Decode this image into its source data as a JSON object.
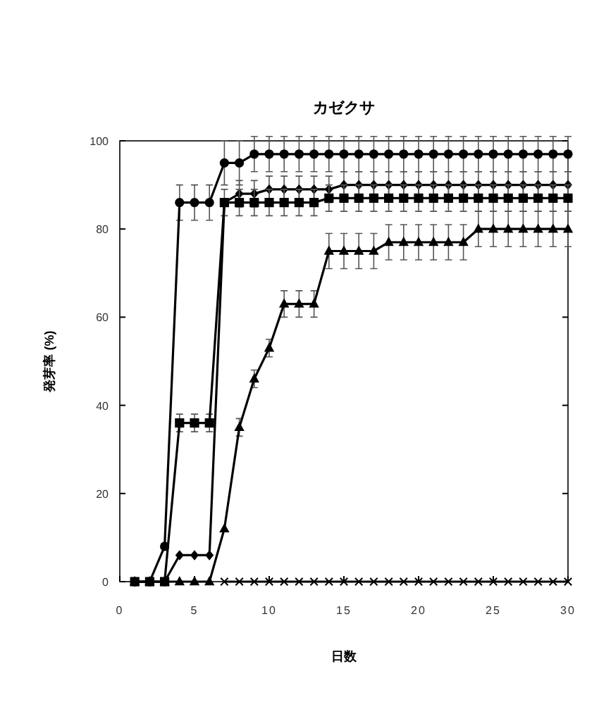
{
  "chart_data": {
    "type": "line",
    "title": "カゼクサ",
    "xlabel": "日数",
    "ylabel": "発芽率 (%)",
    "xlim": [
      0,
      30
    ],
    "xticks": [
      0,
      5,
      10,
      15,
      20,
      25,
      30
    ],
    "ylim": [
      0,
      100
    ],
    "yticks": [
      0,
      20,
      40,
      60,
      80,
      100
    ],
    "grid": false,
    "x": [
      1,
      2,
      3,
      4,
      5,
      6,
      7,
      8,
      9,
      10,
      11,
      12,
      13,
      14,
      15,
      16,
      17,
      18,
      19,
      20,
      21,
      22,
      23,
      24,
      25,
      26,
      27,
      28,
      29,
      30
    ],
    "series": [
      {
        "color": "#000000",
        "marker": "circle",
        "values": [
          0,
          0,
          8,
          86,
          86,
          86,
          95,
          95,
          97,
          97,
          97,
          97,
          97,
          97,
          97,
          97,
          97,
          97,
          97,
          97,
          97,
          97,
          97,
          97,
          97,
          97,
          97,
          97,
          97,
          97
        ],
        "errors": [
          null,
          null,
          null,
          4,
          4,
          4,
          5,
          5,
          4,
          4,
          4,
          4,
          4,
          4,
          4,
          4,
          4,
          4,
          4,
          4,
          4,
          4,
          4,
          4,
          4,
          4,
          4,
          4,
          4,
          4
        ]
      },
      {
        "color": "#000000",
        "marker": "diamond",
        "values": [
          0,
          0,
          0,
          6,
          6,
          6,
          86,
          88,
          88,
          89,
          89,
          89,
          89,
          89,
          90,
          90,
          90,
          90,
          90,
          90,
          90,
          90,
          90,
          90,
          90,
          90,
          90,
          90,
          90,
          90
        ],
        "errors": [
          null,
          null,
          null,
          null,
          null,
          null,
          null,
          3,
          3,
          3,
          3,
          3,
          3,
          3,
          3,
          3,
          3,
          3,
          3,
          3,
          3,
          3,
          3,
          3,
          3,
          3,
          3,
          3,
          3,
          3
        ]
      },
      {
        "color": "#000000",
        "marker": "square",
        "values": [
          0,
          0,
          0,
          36,
          36,
          36,
          86,
          86,
          86,
          86,
          86,
          86,
          86,
          87,
          87,
          87,
          87,
          87,
          87,
          87,
          87,
          87,
          87,
          87,
          87,
          87,
          87,
          87,
          87,
          87
        ],
        "errors": [
          null,
          null,
          null,
          2,
          2,
          2,
          3,
          3,
          3,
          3,
          3,
          3,
          3,
          3,
          3,
          3,
          3,
          3,
          3,
          3,
          3,
          3,
          3,
          3,
          3,
          3,
          3,
          3,
          3,
          3
        ]
      },
      {
        "color": "#000000",
        "marker": "triangle",
        "values": [
          0,
          0,
          0,
          0,
          0,
          0,
          12,
          35,
          46,
          53,
          63,
          63,
          63,
          75,
          75,
          75,
          75,
          77,
          77,
          77,
          77,
          77,
          77,
          80,
          80,
          80,
          80,
          80,
          80,
          80
        ],
        "errors": [
          null,
          null,
          null,
          null,
          null,
          null,
          null,
          2,
          2,
          2,
          3,
          3,
          3,
          4,
          4,
          4,
          4,
          4,
          4,
          4,
          4,
          4,
          4,
          4,
          4,
          4,
          4,
          4,
          4,
          4
        ]
      },
      {
        "color": "#000000",
        "marker": "cross",
        "values": [
          null,
          null,
          null,
          null,
          null,
          null,
          0,
          0,
          0,
          0,
          0,
          0,
          0,
          0,
          0,
          0,
          0,
          0,
          0,
          0,
          0,
          0,
          0,
          0,
          0,
          0,
          0,
          0,
          0,
          0
        ]
      }
    ]
  }
}
